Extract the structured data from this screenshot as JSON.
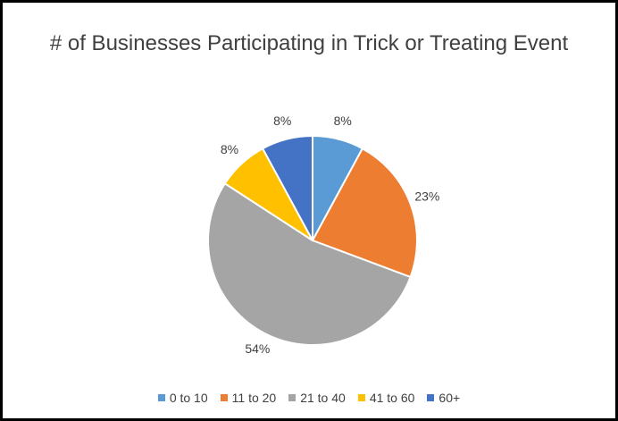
{
  "chart_data": {
    "type": "pie",
    "title": "# of Businesses Participating in Trick or Treating Event",
    "categories": [
      "0 to 10",
      "11 to 20",
      "21 to 40",
      "41 to 60",
      "60+"
    ],
    "values": [
      8,
      23,
      54,
      8,
      8
    ],
    "value_labels": [
      "8%",
      "23%",
      "54%",
      "8%",
      "8%"
    ],
    "colors": [
      "#5b9bd5",
      "#ed7d31",
      "#a5a5a5",
      "#ffc000",
      "#4472c4"
    ],
    "legend": "bottom"
  }
}
